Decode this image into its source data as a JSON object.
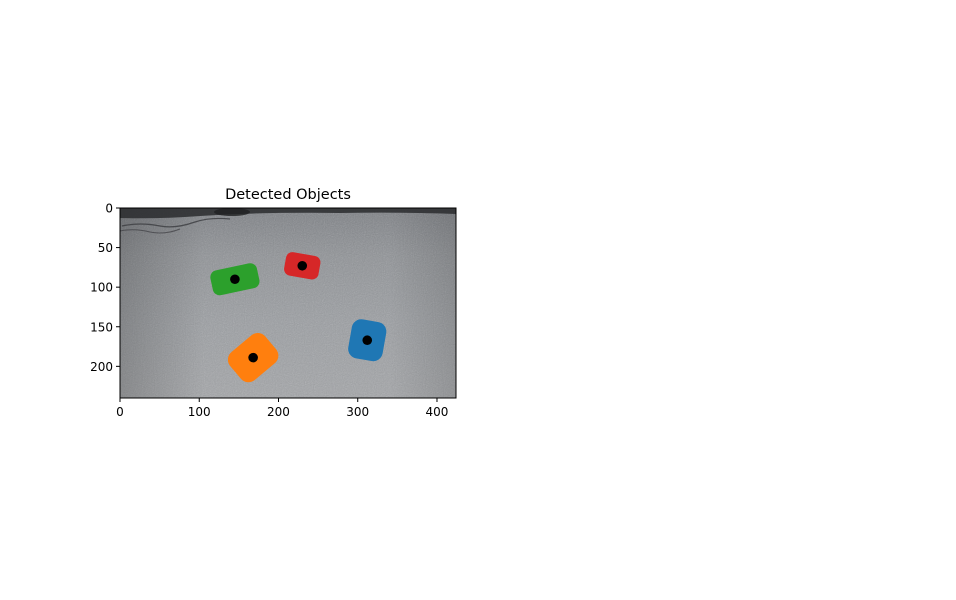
{
  "chart_data": {
    "type": "scatter",
    "title": "Detected Objects",
    "xlabel": "",
    "ylabel": "",
    "xlim": [
      0,
      424
    ],
    "ylim": [
      240,
      0
    ],
    "y_inverted": true,
    "grid": false,
    "legend": "none",
    "background": "floor photograph (grey carpet)",
    "x_ticks": [
      0,
      100,
      200,
      300,
      400
    ],
    "y_ticks": [
      0,
      50,
      100,
      150,
      200
    ],
    "x_tick_labels": [
      "0",
      "100",
      "200",
      "300",
      "400"
    ],
    "y_tick_labels": [
      "0",
      "50",
      "100",
      "150",
      "200"
    ],
    "objects": [
      {
        "color": "#1f77b4",
        "centroid": [
          312,
          167
        ],
        "orientation_deg": 10,
        "half_extent": [
          22,
          25
        ]
      },
      {
        "color": "#ff7f0e",
        "centroid": [
          168,
          189
        ],
        "orientation_deg": -40,
        "half_extent": [
          29,
          23
        ]
      },
      {
        "color": "#2ca02c",
        "centroid": [
          145,
          90
        ],
        "orientation_deg": -12,
        "half_extent": [
          30,
          16
        ]
      },
      {
        "color": "#d62728",
        "centroid": [
          230,
          73
        ],
        "orientation_deg": 10,
        "half_extent": [
          22,
          15
        ]
      }
    ],
    "centroid_marker_color": "#000000"
  }
}
